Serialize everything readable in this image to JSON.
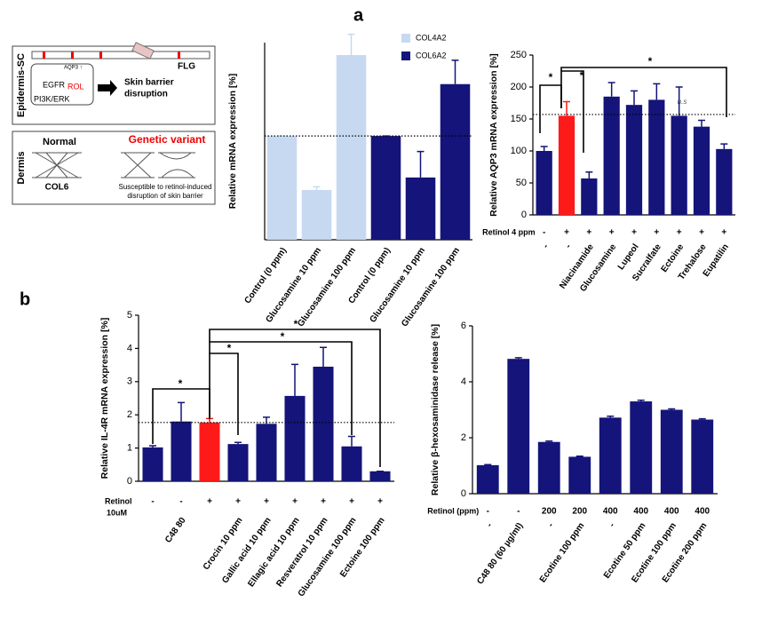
{
  "panels": [
    "a",
    "b"
  ],
  "diagram": {
    "top_label": "Epidermis-SC",
    "flg": "FLG",
    "aqp3": "AQP3 ↑",
    "egfr": "EGFR",
    "rol": "ROL",
    "pathway": "PI3K/ERK",
    "outcome": [
      "Skin barrier",
      "disruption"
    ],
    "bottom_label": "Dermis",
    "normal": "Normal",
    "variant": "Genetic variant",
    "col6": "COL6",
    "susceptible": [
      "Susceptible to retinol-induced",
      "disruption of skin barrier"
    ]
  },
  "chart_data": [
    {
      "type": "bar",
      "y_label": "Relative mRNA expression [%]",
      "categories": [
        "Control (0 ppm)",
        "Glucosamine 10 ppm",
        "Glucosamine 100 ppm",
        "Control (0 ppm)",
        "Glucosamine 10 ppm",
        "Glucosamine 100 ppm"
      ],
      "series": [
        {
          "name": "COL4A2",
          "color": "#c6d9f1",
          "values": [
            1,
            0.48,
            1.78,
            null,
            null,
            null
          ],
          "errors": [
            0,
            0.03,
            0.2,
            null,
            null,
            null
          ]
        },
        {
          "name": "COL6A2",
          "color": "#14147a",
          "values": [
            null,
            null,
            null,
            1,
            0.6,
            1.5
          ],
          "errors": [
            null,
            null,
            null,
            0,
            0.25,
            0.23
          ]
        }
      ],
      "ylim": [
        0,
        1.9
      ],
      "reference_line": 1,
      "legend": "upper right"
    },
    {
      "type": "bar",
      "y_label": "Relative AQP3  mRNA expression [%]",
      "categories": [
        "-",
        "-",
        "Niacinamide",
        "Glucosamine",
        "Lupeol",
        "Sucralfate",
        "Ectoine",
        "Trehalose",
        "Eupatilin"
      ],
      "treatment_label": "Retinol 4 ppm",
      "treatment": [
        "-",
        "+",
        "+",
        "+",
        "+",
        "+",
        "+",
        "+",
        "+"
      ],
      "values": [
        100,
        155,
        57,
        185,
        172,
        180,
        155,
        138,
        103
      ],
      "errors": [
        7,
        22,
        10,
        22,
        22,
        25,
        45,
        10,
        8
      ],
      "colors": [
        "#14147a",
        "#ff1a1a",
        "#14147a",
        "#14147a",
        "#14147a",
        "#14147a",
        "#14147a",
        "#14147a",
        "#14147a"
      ],
      "ylim": [
        0,
        250
      ],
      "yticks": [
        0,
        50,
        100,
        150,
        200,
        250
      ],
      "reference_line": 157,
      "annotations": [
        "*",
        "*",
        "*",
        "n.s"
      ]
    },
    {
      "type": "bar",
      "y_label": "Relative IL-4R  mRNA expression [%]",
      "categories": [
        null,
        "C48 80",
        null,
        "Crocin 10 ppm",
        "Gallic acid 10 ppm",
        "Ellagic acid 10 ppm",
        "Resveratrol 10 ppm",
        "Glucosamine 100 ppm",
        "Ectoine 100 ppm"
      ],
      "treatment_label": [
        "Retinol",
        "10uM"
      ],
      "treatment": [
        "-",
        "-",
        "+",
        "+",
        "+",
        "+",
        "+",
        "+",
        "+"
      ],
      "values": [
        1.02,
        1.8,
        1.77,
        1.12,
        1.73,
        2.57,
        3.45,
        1.05,
        0.3
      ],
      "errors": [
        0.05,
        0.57,
        0.12,
        0.05,
        0.2,
        0.95,
        0.58,
        0.3,
        0
      ],
      "colors": [
        "#14147a",
        "#14147a",
        "#ff1a1a",
        "#14147a",
        "#14147a",
        "#14147a",
        "#14147a",
        "#14147a",
        "#14147a"
      ],
      "ylim": [
        0,
        5
      ],
      "yticks": [
        0,
        1,
        2,
        3,
        4,
        5
      ],
      "reference_line": 1.77,
      "annotations": [
        "*",
        "*",
        "*",
        "*"
      ]
    },
    {
      "type": "bar",
      "y_label": "Relative β-hexosaminidase release [%]",
      "categories": [
        "-",
        "C48 80 (60 µg/ml)",
        "-",
        "Ecotine 100 ppm",
        "-",
        "Ecotine 50 ppm",
        "Ecotine 100 ppm",
        "Ecotine 200 ppm"
      ],
      "treatment_label": "Retinol (ppm)",
      "treatment": [
        "-",
        "-",
        "200",
        "200",
        "400",
        "400",
        "400",
        "400"
      ],
      "values": [
        1.02,
        4.82,
        1.85,
        1.32,
        2.72,
        3.3,
        3.0,
        2.65
      ],
      "errors": [
        0.02,
        0.04,
        0.03,
        0.02,
        0.05,
        0.04,
        0.03,
        0.03
      ],
      "color": "#14147a",
      "ylim": [
        0,
        6
      ],
      "yticks": [
        0,
        2,
        4,
        6
      ]
    }
  ]
}
